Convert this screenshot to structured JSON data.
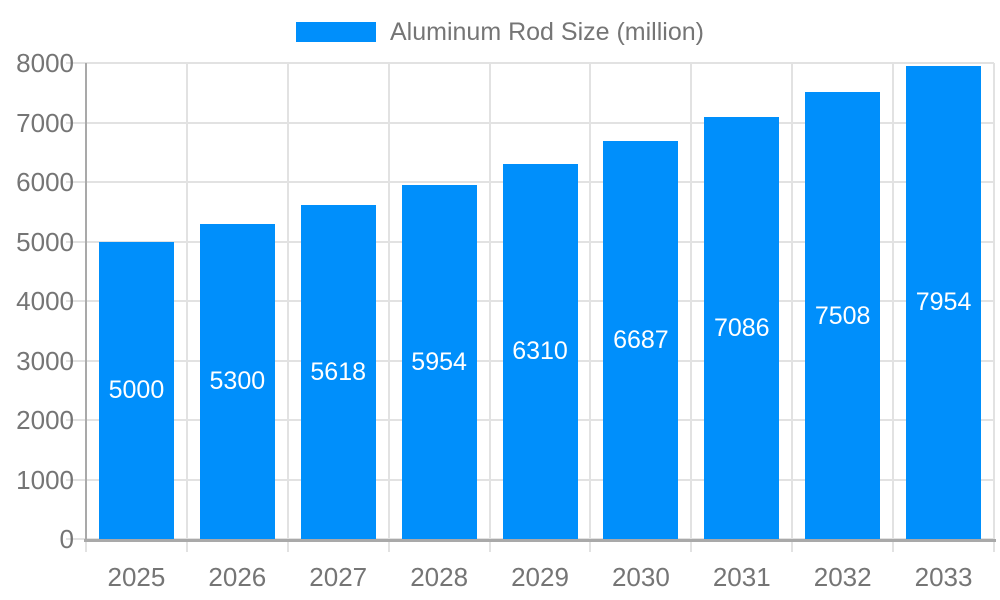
{
  "chart_data": {
    "type": "bar",
    "legend_label": "Aluminum Rod Size (million)",
    "legend_position": "top",
    "categories": [
      "2025",
      "2026",
      "2027",
      "2028",
      "2029",
      "2030",
      "2031",
      "2032",
      "2033"
    ],
    "series": [
      {
        "name": "Aluminum Rod Size (million)",
        "values": [
          5000,
          5300,
          5618,
          5954,
          6310,
          6687,
          7086,
          7508,
          7954
        ]
      }
    ],
    "data_labels_shown": true,
    "xlabel": "",
    "ylabel": "",
    "ylim": [
      0,
      8000
    ],
    "ytick_step": 1000,
    "yticks": [
      "0",
      "1000",
      "2000",
      "3000",
      "4000",
      "5000",
      "6000",
      "7000",
      "8000"
    ],
    "grid": true,
    "colors": {
      "bar": "#008FFB",
      "grid": "#e2e2e2",
      "axis": "#a9a9a9",
      "tick_label": "#757575",
      "value_label": "#ffffff",
      "legend_text": "#757575",
      "background": "#ffffff"
    }
  }
}
